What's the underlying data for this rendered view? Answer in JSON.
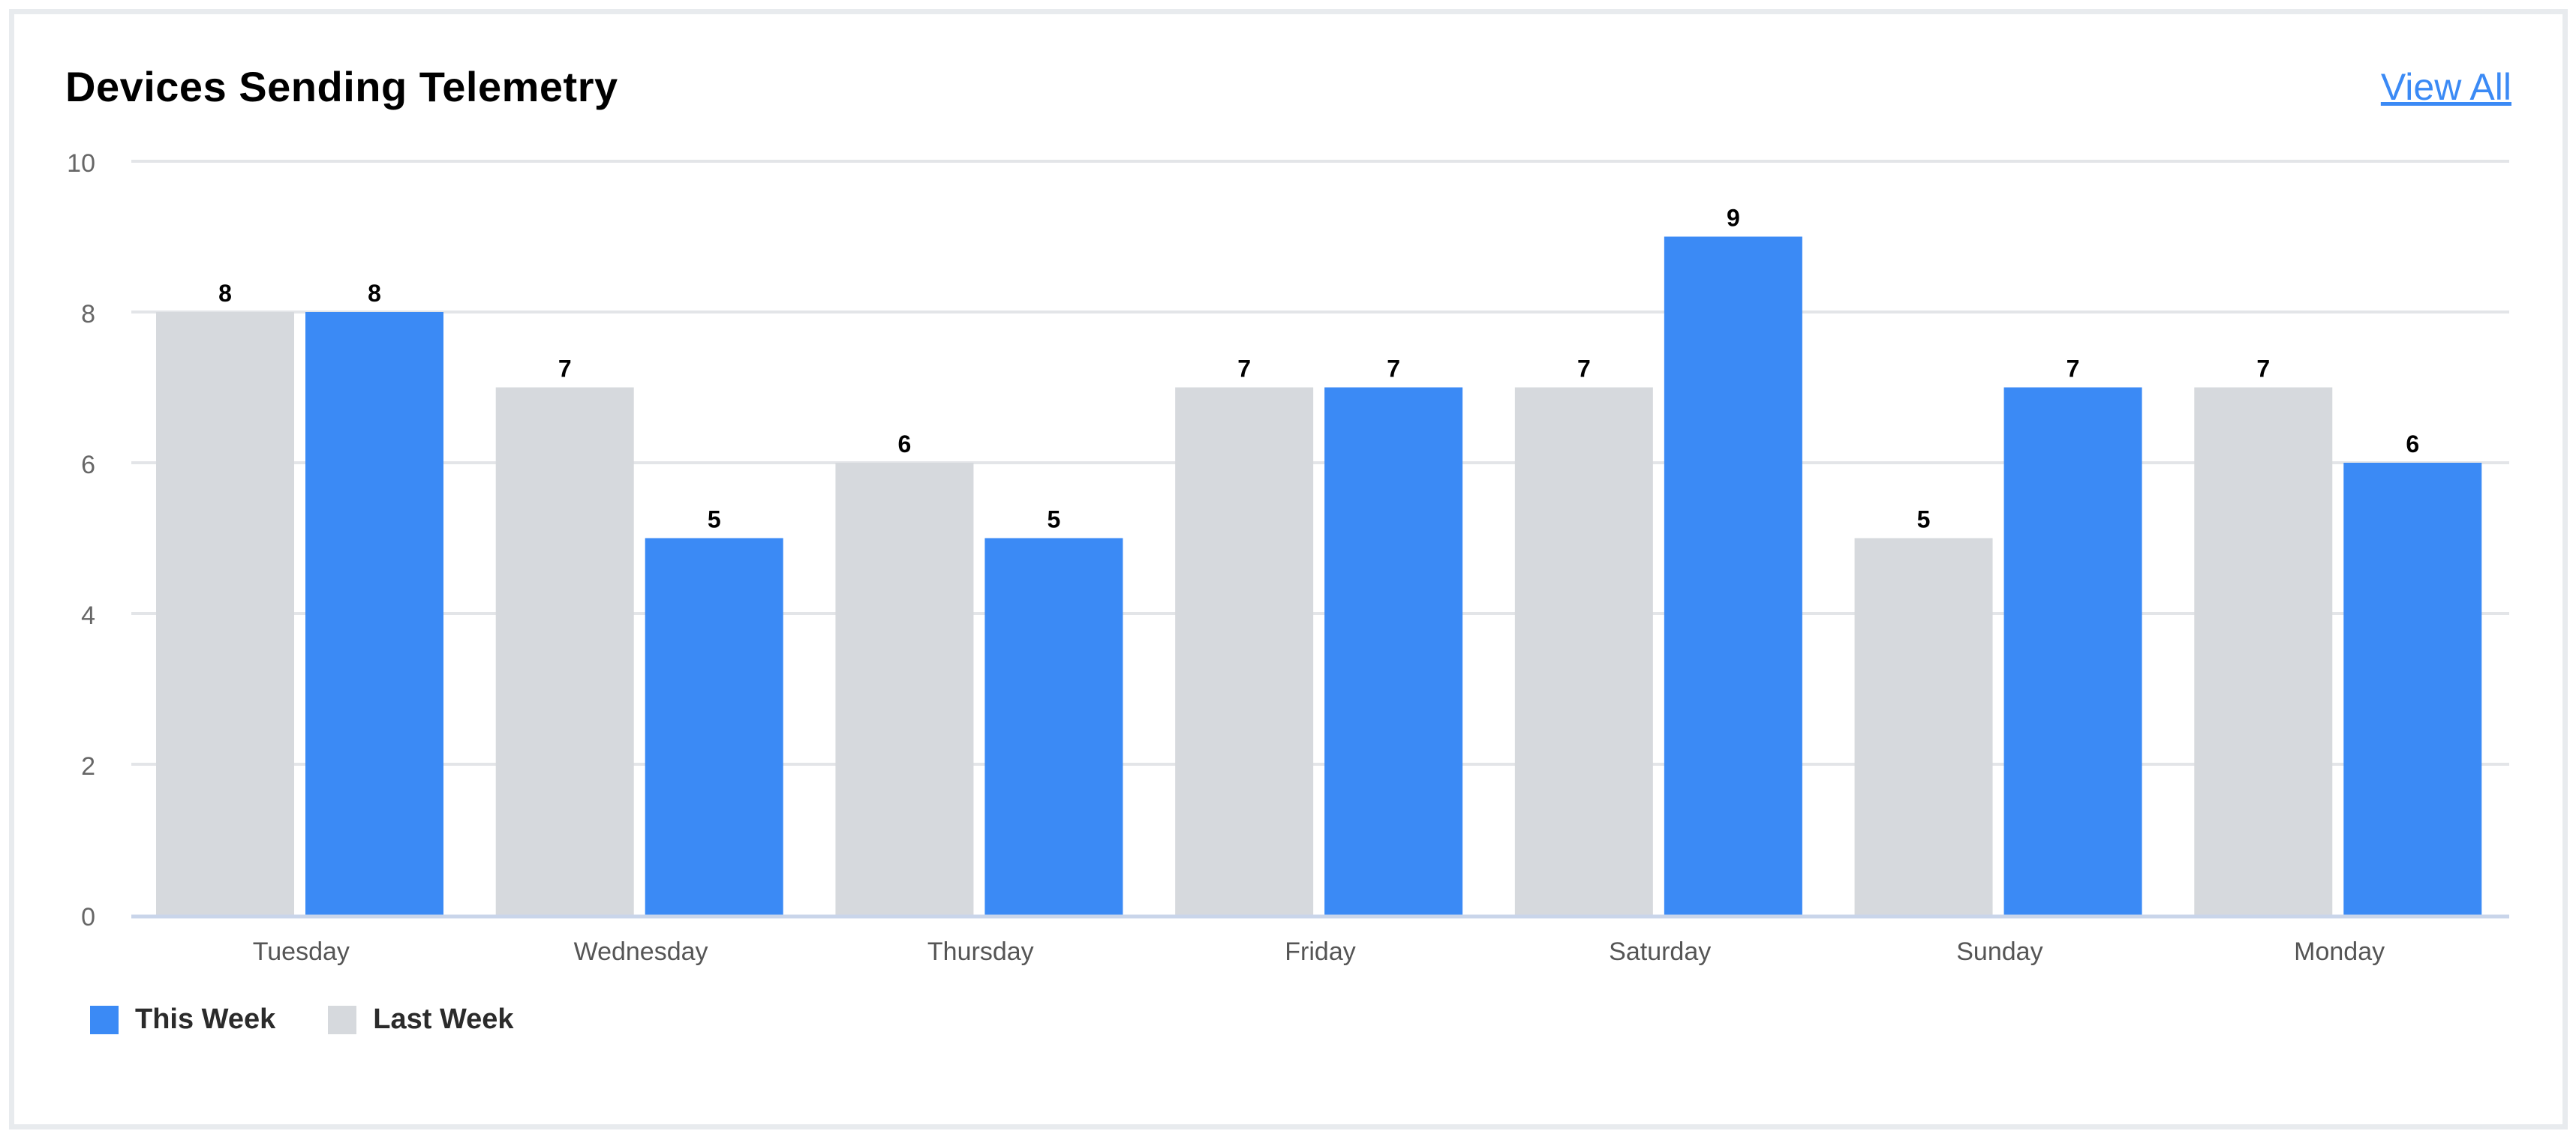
{
  "header": {
    "title": "Devices Sending Telemetry",
    "view_all_label": "View All"
  },
  "colors": {
    "this_week": "#3b8af5",
    "last_week": "#d6d9dd",
    "accent": "#3b8af5"
  },
  "chart_data": {
    "type": "bar",
    "title": "Devices Sending Telemetry",
    "categories": [
      "Tuesday",
      "Wednesday",
      "Thursday",
      "Friday",
      "Saturday",
      "Sunday",
      "Monday"
    ],
    "series": [
      {
        "name": "Last Week",
        "color": "#d6d9dd",
        "values": [
          8,
          7,
          6,
          7,
          7,
          5,
          7
        ]
      },
      {
        "name": "This Week",
        "color": "#3b8af5",
        "values": [
          8,
          5,
          5,
          7,
          9,
          7,
          6
        ]
      }
    ],
    "yticks": [
      0,
      2,
      4,
      6,
      8,
      10
    ],
    "ylim": [
      0,
      10
    ],
    "grid": true,
    "data_labels": true,
    "legend": {
      "placement": "bottom-left",
      "order": [
        "This Week",
        "Last Week"
      ]
    }
  }
}
